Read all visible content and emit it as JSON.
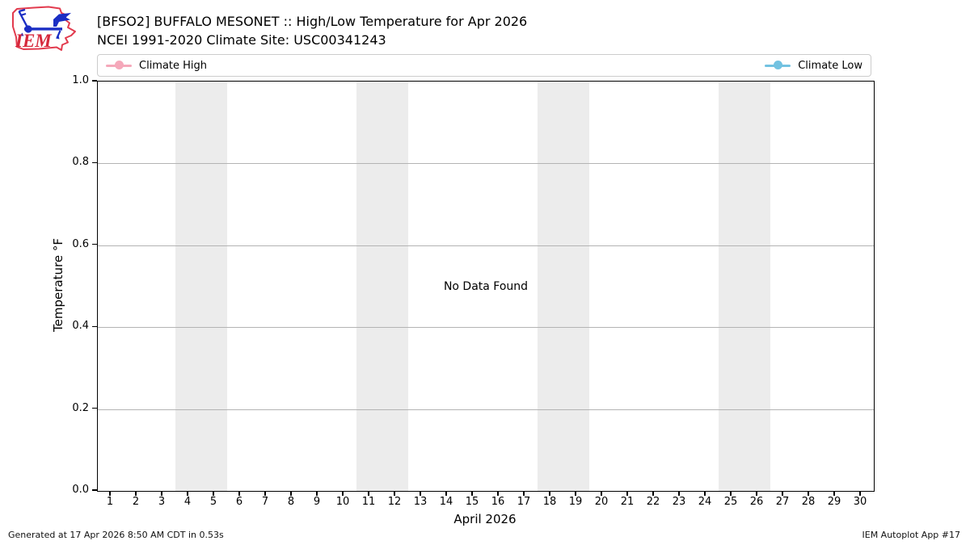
{
  "header": {
    "title": "[BFSO2] BUFFALO MESONET :: High/Low Temperature for Apr 2026",
    "subtitle": "NCEI 1991-2020 Climate Site: USC00341243"
  },
  "logo": {
    "text": "IEM"
  },
  "footer": {
    "generated": "Generated at 17 Apr 2026 8:50 AM CDT in 0.53s",
    "app": "IEM Autoplot App #17"
  },
  "chart_data": {
    "type": "line",
    "title": "[BFSO2] BUFFALO MESONET :: High/Low Temperature for Apr 2026",
    "subtitle": "NCEI 1991-2020 Climate Site: USC00341243",
    "xlabel": "April 2026",
    "ylabel": "Temperature °F",
    "xlim": [
      0.5,
      30.5
    ],
    "ylim": [
      0.0,
      1.0
    ],
    "x_ticks": [
      1,
      2,
      3,
      4,
      5,
      6,
      7,
      8,
      9,
      10,
      11,
      12,
      13,
      14,
      15,
      16,
      17,
      18,
      19,
      20,
      21,
      22,
      23,
      24,
      25,
      26,
      27,
      28,
      29,
      30
    ],
    "y_ticks": [
      "0.0",
      "0.2",
      "0.4",
      "0.6",
      "0.8",
      "1.0"
    ],
    "grid": "horizontal",
    "grid_color": "#b3b3b3",
    "legend_position": "top, single box spanning plot width, entries left and right",
    "legend": [
      {
        "label": "Climate High",
        "color": "#f5a8ba"
      },
      {
        "label": "Climate Low",
        "color": "#72c2e1"
      }
    ],
    "series": [
      {
        "name": "Climate High",
        "x": [],
        "y": []
      },
      {
        "name": "Climate Low",
        "x": [],
        "y": []
      }
    ],
    "annotations": [
      "No Data Found"
    ],
    "weekend_bands": [
      [
        3.5,
        5.5
      ],
      [
        10.5,
        12.5
      ],
      [
        17.5,
        19.5
      ],
      [
        24.5,
        26.5
      ]
    ],
    "band_color": "#ececec"
  }
}
